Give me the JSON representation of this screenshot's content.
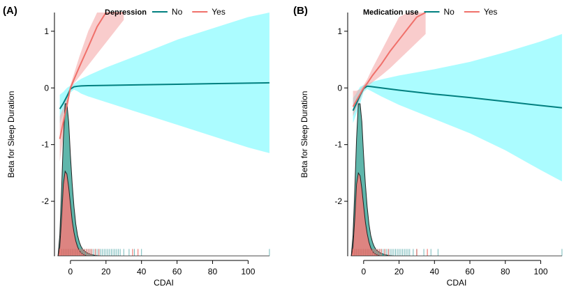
{
  "colors": {
    "no_line": "#007f7f",
    "no_band": "#00f5ff",
    "no_density": "#2a9d8f",
    "yes_line": "#f0706a",
    "yes_band": "#f4a3a3",
    "yes_density": "#f37b79"
  },
  "chart_data": [
    {
      "type": "line",
      "panel_label": "(A)",
      "legend_title": "Depression",
      "legend_entries": [
        "No",
        "Yes"
      ],
      "xlabel": "CDAI",
      "ylabel": "Beta for Sleep Duration",
      "xlim": [
        -9,
        114
      ],
      "ylim": [
        -2.97,
        1.33
      ],
      "x_ticks": [
        0,
        20,
        40,
        60,
        80,
        100
      ],
      "x_tick_labels": [
        "0",
        "20",
        "40",
        "60",
        "80",
        "100"
      ],
      "y_ticks": [
        -2,
        -1,
        0,
        1
      ],
      "y_tick_labels": [
        "-2",
        "-1",
        "0",
        "1"
      ],
      "grid": false,
      "legend_position": "top",
      "series": [
        {
          "name": "No",
          "x": [
            -6,
            -4,
            -2,
            0,
            2,
            4,
            6,
            10,
            20,
            40,
            60,
            80,
            100,
            112
          ],
          "y": [
            -0.37,
            -0.27,
            -0.15,
            -0.02,
            0.02,
            0.03,
            0.035,
            0.04,
            0.045,
            0.055,
            0.065,
            0.075,
            0.085,
            0.09
          ],
          "lower": [
            -0.62,
            -0.47,
            -0.3,
            -0.08,
            -0.03,
            -0.06,
            -0.1,
            -0.15,
            -0.25,
            -0.45,
            -0.65,
            -0.85,
            -1.05,
            -1.15
          ],
          "upper": [
            -0.12,
            -0.07,
            0.0,
            0.04,
            0.07,
            0.12,
            0.16,
            0.22,
            0.36,
            0.6,
            0.85,
            1.05,
            1.25,
            1.33
          ]
        },
        {
          "name": "Yes",
          "x": [
            -6,
            -4,
            -2,
            0,
            2,
            5,
            10,
            15,
            20,
            25,
            30
          ],
          "y": [
            -0.9,
            -0.6,
            -0.3,
            0.0,
            0.15,
            0.37,
            0.72,
            1.08,
            1.33,
            1.33,
            1.33
          ],
          "lower": [
            -1.3,
            -0.85,
            -0.45,
            -0.05,
            0.08,
            0.2,
            0.4,
            0.6,
            0.8,
            1.0,
            1.2
          ],
          "upper": [
            -0.5,
            -0.35,
            -0.15,
            0.05,
            0.25,
            0.55,
            1.0,
            1.33,
            1.33,
            1.33,
            1.33
          ]
        }
      ],
      "density": [
        {
          "name": "No",
          "x": [
            -7,
            -6,
            -5,
            -4,
            -3,
            -2,
            -1,
            0,
            1,
            2,
            3,
            4,
            5,
            6,
            7,
            8,
            10,
            12,
            15,
            20
          ],
          "y": [
            -2.97,
            -2.6,
            -1.8,
            -0.9,
            -0.28,
            -0.28,
            -0.6,
            -1.2,
            -1.7,
            -2.1,
            -2.4,
            -2.6,
            -2.72,
            -2.8,
            -2.85,
            -2.88,
            -2.92,
            -2.94,
            -2.96,
            -2.97
          ]
        },
        {
          "name": "Yes",
          "x": [
            -7,
            -6,
            -5,
            -4,
            -3,
            -2,
            -1,
            0,
            1,
            2,
            3,
            4,
            5,
            6,
            8,
            10
          ],
          "y": [
            -2.97,
            -2.8,
            -2.3,
            -1.7,
            -1.47,
            -1.52,
            -1.75,
            -2.05,
            -2.35,
            -2.55,
            -2.7,
            -2.8,
            -2.87,
            -2.91,
            -2.95,
            -2.97
          ]
        }
      ],
      "rug": {
        "no_x": [
          -5,
          -4,
          -3,
          -2,
          -1,
          0,
          1,
          2,
          3,
          4,
          5,
          6,
          7,
          8,
          9,
          10,
          11,
          12,
          13,
          14,
          15,
          16,
          17,
          18,
          19,
          20,
          21,
          22,
          23,
          24,
          25,
          26,
          27,
          28,
          30,
          33,
          36,
          40,
          112
        ],
        "yes_x": [
          -6,
          -5,
          -4,
          -3,
          -2,
          -1,
          0,
          1,
          2,
          3,
          4,
          5,
          6,
          7,
          8,
          9,
          10,
          11,
          12,
          14,
          16,
          35,
          38
        ]
      }
    },
    {
      "type": "line",
      "panel_label": "(B)",
      "legend_title": "Medication use",
      "legend_entries": [
        "No",
        "Yes"
      ],
      "xlabel": "CDAI",
      "ylabel": "Beta for Sleep Duration",
      "xlim": [
        -9,
        114
      ],
      "ylim": [
        -2.97,
        1.33
      ],
      "x_ticks": [
        0,
        20,
        40,
        60,
        80,
        100
      ],
      "x_tick_labels": [
        "0",
        "20",
        "40",
        "60",
        "80",
        "100"
      ],
      "y_ticks": [
        -2,
        -1,
        0,
        1
      ],
      "y_tick_labels": [
        "-2",
        "-1",
        "0",
        "1"
      ],
      "grid": false,
      "legend_position": "top",
      "series": [
        {
          "name": "No",
          "x": [
            -6,
            -4,
            -2,
            0,
            2,
            4,
            10,
            20,
            40,
            60,
            80,
            100,
            112
          ],
          "y": [
            -0.4,
            -0.27,
            -0.13,
            -0.01,
            0.03,
            0.025,
            0.0,
            -0.04,
            -0.11,
            -0.17,
            -0.24,
            -0.31,
            -0.35
          ],
          "lower": [
            -0.62,
            -0.45,
            -0.28,
            -0.07,
            -0.02,
            -0.05,
            -0.15,
            -0.3,
            -0.55,
            -0.8,
            -1.1,
            -1.45,
            -1.65
          ],
          "upper": [
            -0.18,
            -0.09,
            0.02,
            0.05,
            0.08,
            0.1,
            0.15,
            0.22,
            0.33,
            0.46,
            0.63,
            0.82,
            0.95
          ]
        },
        {
          "name": "Yes",
          "x": [
            -6,
            -4,
            -2,
            0,
            2,
            5,
            10,
            15,
            20,
            25,
            30,
            35
          ],
          "y": [
            -0.33,
            -0.22,
            -0.11,
            0.0,
            0.08,
            0.22,
            0.42,
            0.65,
            0.85,
            1.05,
            1.25,
            1.33
          ],
          "lower": [
            -0.5,
            -0.35,
            -0.2,
            -0.05,
            0.02,
            0.1,
            0.22,
            0.35,
            0.5,
            0.65,
            0.8,
            0.95
          ],
          "upper": [
            -0.05,
            -0.05,
            -0.02,
            0.05,
            0.15,
            0.35,
            0.65,
            0.95,
            1.25,
            1.33,
            1.33,
            1.33
          ]
        }
      ],
      "density": [
        {
          "name": "No",
          "x": [
            -7,
            -6,
            -5,
            -4,
            -3,
            -2,
            -1,
            0,
            1,
            2,
            3,
            4,
            5,
            6,
            7,
            8,
            10,
            12,
            15,
            20
          ],
          "y": [
            -2.97,
            -2.6,
            -1.8,
            -0.9,
            -0.28,
            -0.28,
            -0.6,
            -1.2,
            -1.7,
            -2.1,
            -2.4,
            -2.6,
            -2.72,
            -2.8,
            -2.85,
            -2.88,
            -2.92,
            -2.94,
            -2.96,
            -2.97
          ]
        },
        {
          "name": "Yes",
          "x": [
            -7,
            -6,
            -5,
            -4,
            -3,
            -2,
            -1,
            0,
            1,
            2,
            3,
            4,
            5,
            6,
            8,
            10
          ],
          "y": [
            -2.97,
            -2.8,
            -2.3,
            -1.7,
            -1.5,
            -1.55,
            -1.78,
            -2.08,
            -2.37,
            -2.57,
            -2.72,
            -2.82,
            -2.88,
            -2.92,
            -2.95,
            -2.97
          ]
        }
      ],
      "rug": {
        "no_x": [
          -5,
          -4,
          -3,
          -2,
          -1,
          0,
          1,
          2,
          3,
          4,
          5,
          6,
          7,
          8,
          9,
          10,
          11,
          12,
          13,
          14,
          15,
          16,
          17,
          18,
          19,
          20,
          21,
          22,
          23,
          24,
          25,
          26,
          28,
          30,
          34,
          38,
          42,
          112
        ],
        "yes_x": [
          -6,
          -5,
          -4,
          -3,
          -2,
          -1,
          0,
          1,
          2,
          3,
          4,
          5,
          6,
          7,
          8,
          9,
          10,
          12,
          14,
          30,
          36
        ]
      }
    }
  ]
}
